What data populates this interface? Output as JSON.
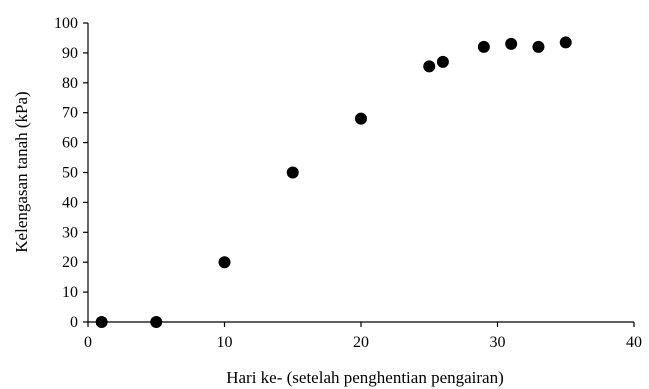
{
  "chart_data": {
    "type": "scatter",
    "title": "",
    "xlabel": "Hari ke- (setelah penghentian pengairan)",
    "ylabel": "Kelengasan tanah (kPa)",
    "xlim": [
      0,
      40
    ],
    "ylim": [
      0,
      100
    ],
    "x_ticks": [
      0,
      10,
      20,
      30,
      40
    ],
    "y_ticks": [
      0,
      10,
      20,
      30,
      40,
      50,
      60,
      70,
      80,
      90,
      100
    ],
    "grid": false,
    "legend": "none",
    "marker_color": "#000000",
    "series": [
      {
        "x": [
          1,
          5,
          10,
          15,
          20,
          25,
          26,
          29,
          31,
          33,
          35
        ],
        "y": [
          0,
          0,
          20,
          50,
          68,
          85.5,
          87,
          92,
          93,
          92,
          93.5
        ]
      }
    ]
  }
}
